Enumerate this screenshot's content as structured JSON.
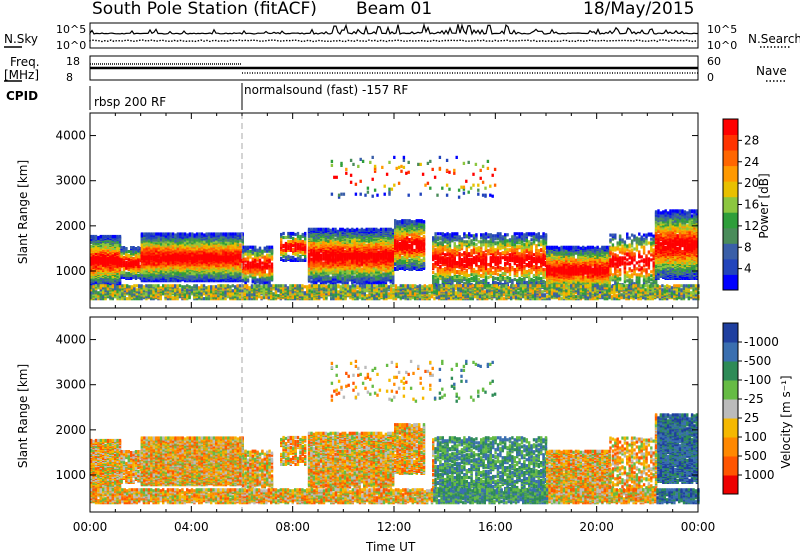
{
  "header": {
    "station": "South Pole Station (fitACF)",
    "beam": "Beam 01",
    "date": "18/May/2015"
  },
  "strips": {
    "nsky_label": "N.Sky",
    "nsky_ticks": [
      "10^5",
      "10^0"
    ],
    "nsearch_label": "N.Search",
    "nsearch_ticks": [
      "10^5",
      "10^0"
    ],
    "freq_label": "Freq.",
    "freq_unit": "[MHz]",
    "freq_ticks": [
      "18",
      "8"
    ],
    "nave_label": "Nave",
    "nave_ticks": [
      "60",
      "0"
    ],
    "cpid_label": "CPID",
    "cpid_segments": [
      {
        "text": "rbsp 200 RF",
        "start_hour": 0
      },
      {
        "text": "normalsound (fast) -157 RF",
        "start_hour": 6
      }
    ]
  },
  "chart_data": [
    {
      "type": "heatmap",
      "panel": "power",
      "xlabel": "Time UT",
      "ylabel": "Slant Range [km]",
      "xlim": [
        0,
        24
      ],
      "ylim": [
        180,
        4500
      ],
      "x_ticks": [
        "00:00",
        "04:00",
        "08:00",
        "12:00",
        "16:00",
        "20:00",
        "00:00"
      ],
      "y_ticks": [
        1000,
        2000,
        3000,
        4000
      ],
      "colorbar": {
        "label": "Power [dB]",
        "ticks": [
          "4",
          "8",
          "12",
          "16",
          "20",
          "24",
          "28"
        ],
        "colors": [
          "#0000ff",
          "#2244bb",
          "#3a5fa8",
          "#4a8c5a",
          "#2e9e3a",
          "#8cc63f",
          "#e8c000",
          "#ff9900",
          "#ff6600",
          "#ff3300",
          "#ff0000"
        ]
      }
    },
    {
      "type": "heatmap",
      "panel": "velocity",
      "xlabel": "Time UT",
      "ylabel": "Slant Range [km]",
      "xlim": [
        0,
        24
      ],
      "ylim": [
        180,
        4500
      ],
      "x_ticks": [
        "00:00",
        "04:00",
        "08:00",
        "12:00",
        "16:00",
        "20:00",
        "00:00"
      ],
      "y_ticks": [
        1000,
        2000,
        3000,
        4000
      ],
      "colorbar": {
        "label": "Velocity [m s⁻¹]",
        "ticks": [
          "1000",
          "500",
          "100",
          "25",
          "-25",
          "-100",
          "-500",
          "-1000"
        ],
        "colors": [
          "#1f3f9f",
          "#3a6fb0",
          "#2e8b57",
          "#66bb44",
          "#bbbbbb",
          "#f5b800",
          "#ff8800",
          "#ff5500",
          "#ee0000"
        ]
      }
    }
  ]
}
